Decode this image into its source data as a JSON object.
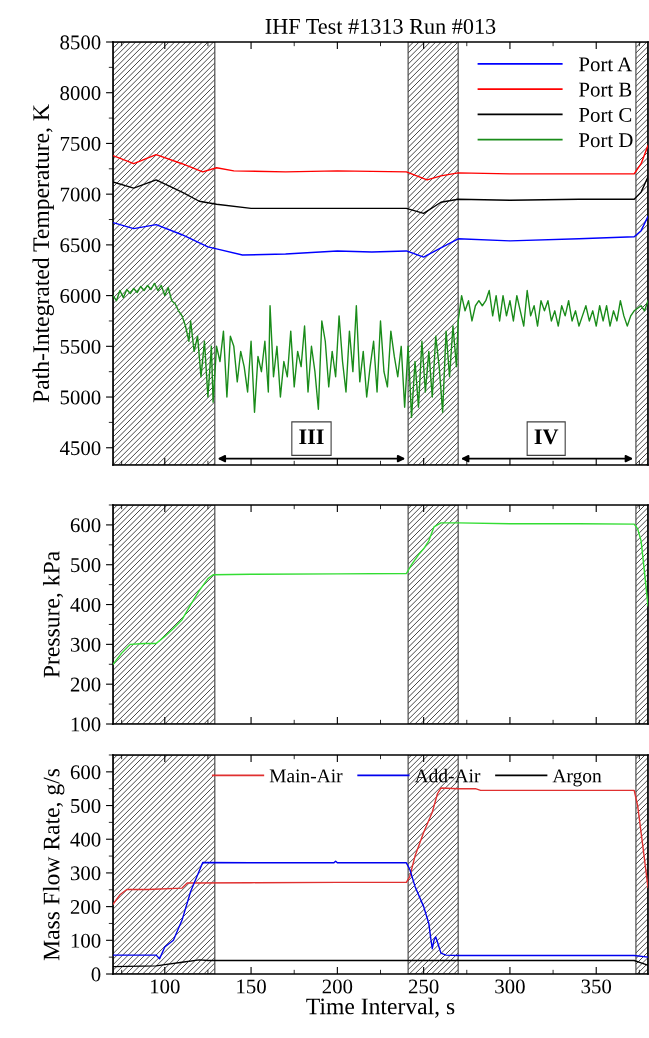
{
  "chart_data": [
    {
      "type": "line",
      "title": "IHF Test #1313 Run #013",
      "ylabel": "Path-Integrated Temperature, K",
      "xlim": [
        70,
        380
      ],
      "xticks": [
        100,
        150,
        200,
        250,
        300,
        350
      ],
      "ylim": [
        4330,
        8500
      ],
      "yticks": [
        4500,
        5000,
        5500,
        6000,
        6500,
        7000,
        7500,
        8000,
        8500
      ],
      "tick_labels": "y",
      "legend": "top right",
      "grid": false,
      "bands": [
        {
          "axis": "x",
          "from": 70,
          "to": 129,
          "color": "#404040"
        },
        {
          "axis": "x",
          "from": 241,
          "to": 270,
          "color": "#404040"
        },
        {
          "axis": "x",
          "from": 373,
          "to": 380,
          "color": "#404040"
        }
      ],
      "annotations": [
        {
          "text": "III",
          "x": 185,
          "y": 4590
        },
        {
          "text": "IV",
          "x": 321,
          "y": 4590
        }
      ],
      "series": [
        {
          "name": "Port A",
          "color": "#0000ff",
          "x": [
            70,
            82,
            95,
            110,
            125,
            130,
            145,
            170,
            200,
            220,
            240,
            250,
            260,
            270,
            300,
            340,
            372,
            376,
            380
          ],
          "values": [
            6720,
            6660,
            6700,
            6600,
            6480,
            6460,
            6400,
            6410,
            6440,
            6430,
            6440,
            6380,
            6470,
            6560,
            6540,
            6560,
            6580,
            6640,
            6780
          ]
        },
        {
          "name": "Port B",
          "color": "#ff0000",
          "x": [
            70,
            82,
            95,
            110,
            122,
            130,
            140,
            170,
            200,
            240,
            252,
            260,
            270,
            300,
            340,
            372,
            376,
            380
          ],
          "values": [
            7380,
            7300,
            7390,
            7300,
            7220,
            7260,
            7230,
            7220,
            7230,
            7220,
            7140,
            7180,
            7210,
            7200,
            7200,
            7200,
            7300,
            7480
          ]
        },
        {
          "name": "Port C",
          "color": "#000000",
          "x": [
            70,
            82,
            95,
            110,
            120,
            130,
            150,
            200,
            240,
            250,
            260,
            270,
            300,
            340,
            372,
            376,
            380
          ],
          "values": [
            7120,
            7060,
            7140,
            7020,
            6930,
            6900,
            6860,
            6860,
            6860,
            6810,
            6920,
            6950,
            6940,
            6950,
            6950,
            7020,
            7170
          ]
        },
        {
          "name": "Port D",
          "color": "#1a8c1a",
          "x": [
            70,
            72,
            74,
            76,
            78,
            80,
            82,
            84,
            86,
            88,
            90,
            92,
            94,
            96,
            98,
            100,
            102,
            104,
            106,
            108,
            110,
            112,
            114,
            115,
            117,
            119,
            121,
            123,
            125,
            127,
            128,
            130,
            132,
            134,
            136,
            138,
            140,
            142,
            144,
            146,
            148,
            150,
            152,
            154,
            156,
            158,
            160,
            161,
            163,
            165,
            167,
            169,
            171,
            173,
            175,
            177,
            179,
            181,
            183,
            185,
            187,
            189,
            191,
            193,
            195,
            197,
            199,
            201,
            203,
            205,
            207,
            209,
            211,
            213,
            215,
            217,
            219,
            221,
            223,
            225,
            227,
            229,
            231,
            233,
            235,
            237,
            239,
            241,
            243,
            245,
            247,
            249,
            251,
            253,
            255,
            257,
            259,
            261,
            263,
            265,
            267,
            269,
            270,
            272,
            274,
            276,
            278,
            280,
            282,
            284,
            286,
            288,
            290,
            292,
            294,
            296,
            298,
            300,
            302,
            304,
            306,
            308,
            310,
            312,
            314,
            316,
            318,
            320,
            322,
            324,
            326,
            328,
            330,
            332,
            334,
            336,
            338,
            340,
            342,
            344,
            346,
            348,
            350,
            352,
            354,
            356,
            358,
            360,
            362,
            364,
            366,
            368,
            370,
            372,
            376,
            378,
            380
          ],
          "values": [
            6000,
            5950,
            6050,
            5980,
            6060,
            6020,
            6070,
            6030,
            6090,
            6050,
            6100,
            6060,
            6120,
            6050,
            6100,
            6000,
            6080,
            5950,
            5920,
            5850,
            5800,
            5700,
            5550,
            5750,
            5450,
            5600,
            5200,
            5550,
            5000,
            5500,
            4950,
            5500,
            5350,
            5650,
            5000,
            5600,
            5500,
            5150,
            5450,
            5300,
            5050,
            5550,
            4850,
            5400,
            5250,
            5550,
            5050,
            5900,
            5200,
            5500,
            5000,
            5350,
            5200,
            5650,
            5100,
            5450,
            5300,
            5700,
            5050,
            5500,
            5250,
            4880,
            5750,
            5550,
            5100,
            5450,
            5200,
            5800,
            5350,
            5050,
            5650,
            5250,
            5900,
            5150,
            5450,
            5000,
            5300,
            5550,
            5050,
            5750,
            5250,
            5100,
            5650,
            5400,
            5200,
            5500,
            4900,
            5500,
            4800,
            5350,
            4900,
            5550,
            5050,
            5450,
            5000,
            5600,
            5300,
            4850,
            5650,
            5200,
            5700,
            5300,
            5750,
            6000,
            5850,
            5950,
            5750,
            5900,
            5950,
            5900,
            5950,
            6050,
            5800,
            6000,
            5750,
            6000,
            5800,
            5950,
            5750,
            6000,
            5850,
            5700,
            6050,
            5800,
            5900,
            5700,
            5950,
            5850,
            5950,
            5750,
            5850,
            5700,
            5900,
            5800,
            5950,
            5750,
            5850,
            5700,
            5800,
            5900,
            5750,
            5850,
            5700,
            5900,
            5750,
            5900,
            5700,
            5850,
            5750,
            5950,
            5800,
            5700,
            5800,
            5850,
            5900,
            5850,
            5950
          ]
        }
      ]
    },
    {
      "type": "line",
      "ylabel": "Pressure, kPa",
      "xlim": [
        70,
        380
      ],
      "xticks": [
        100,
        150,
        200,
        250,
        300,
        350
      ],
      "ylim": [
        100,
        650
      ],
      "yticks": [
        100,
        200,
        300,
        400,
        500,
        600
      ],
      "tick_labels": "y",
      "grid": false,
      "bands": [
        {
          "axis": "x",
          "from": 70,
          "to": 129,
          "color": "#404040"
        },
        {
          "axis": "x",
          "from": 241,
          "to": 270,
          "color": "#404040"
        },
        {
          "axis": "x",
          "from": 373,
          "to": 380,
          "color": "#404040"
        }
      ],
      "series": [
        {
          "color": "#33dd33",
          "x": [
            70,
            75,
            80,
            88,
            95,
            100,
            105,
            110,
            115,
            120,
            125,
            128,
            150,
            200,
            240,
            243,
            247,
            250,
            253,
            256,
            260,
            270,
            300,
            340,
            372,
            374,
            376,
            378,
            380
          ],
          "values": [
            250,
            278,
            300,
            302,
            302,
            320,
            340,
            362,
            400,
            435,
            465,
            475,
            476,
            477,
            478,
            500,
            525,
            540,
            560,
            595,
            605,
            605,
            603,
            603,
            602,
            590,
            560,
            480,
            397
          ]
        }
      ]
    },
    {
      "type": "line",
      "xlabel": "Time Interval, s",
      "ylabel": "Mass Flow Rate, g/s",
      "xlim": [
        70,
        380
      ],
      "xticks": [
        100,
        150,
        200,
        250,
        300,
        350
      ],
      "ylim": [
        0,
        650
      ],
      "yticks": [
        0,
        100,
        200,
        300,
        400,
        500,
        600
      ],
      "legend": "top",
      "grid": false,
      "bands": [
        {
          "axis": "x",
          "from": 70,
          "to": 129,
          "color": "#404040"
        },
        {
          "axis": "x",
          "from": 241,
          "to": 270,
          "color": "#404040"
        },
        {
          "axis": "x",
          "from": 373,
          "to": 380,
          "color": "#404040"
        }
      ],
      "series": [
        {
          "name": "Main-Air",
          "color": "#e03030",
          "x": [
            70,
            74,
            78,
            90,
            110,
            113,
            150,
            200,
            240,
            242,
            245,
            250,
            255,
            258,
            260,
            270,
            280,
            283,
            300,
            340,
            372,
            374,
            377,
            380
          ],
          "values": [
            207,
            235,
            251,
            251,
            255,
            270,
            271,
            272,
            272,
            290,
            350,
            420,
            480,
            535,
            552,
            550,
            550,
            545,
            545,
            545,
            545,
            500,
            380,
            257
          ]
        },
        {
          "name": "Add-Air",
          "color": "#0000ee",
          "x": [
            70,
            95,
            97,
            100,
            105,
            110,
            115,
            122,
            150,
            198,
            199,
            200,
            240,
            242,
            245,
            250,
            253,
            254,
            255,
            256,
            257,
            258,
            260,
            263,
            270,
            300,
            372,
            380
          ],
          "values": [
            56,
            56,
            45,
            80,
            100,
            160,
            245,
            331,
            330,
            330,
            335,
            330,
            330,
            310,
            260,
            200,
            150,
            110,
            75,
            100,
            110,
            95,
            62,
            56,
            55,
            55,
            55,
            50
          ]
        },
        {
          "name": "Argon",
          "color": "#000000",
          "x": [
            70,
            95,
            100,
            110,
            120,
            125,
            150,
            200,
            300,
            372,
            376,
            380
          ],
          "values": [
            22,
            24,
            28,
            35,
            42,
            40,
            40,
            40,
            40,
            40,
            33,
            26
          ]
        }
      ]
    }
  ]
}
